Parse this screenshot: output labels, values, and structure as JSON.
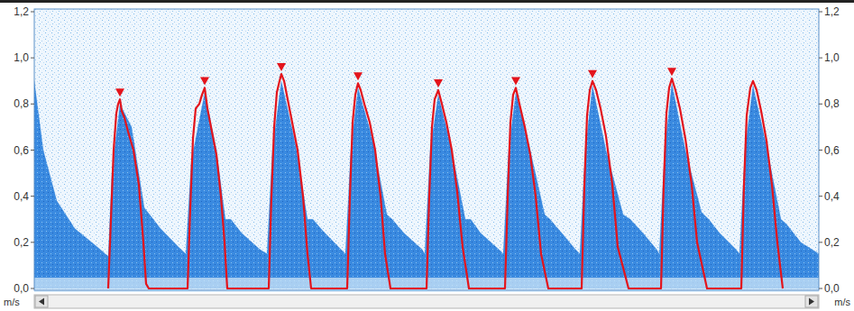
{
  "chart_data": {
    "type": "line",
    "y_label": "m/s",
    "y2_label": "m/s",
    "xlim": [
      0,
      870
    ],
    "ylim": [
      0,
      1.2
    ],
    "yticks": [
      {
        "value": 0,
        "label": "0,0"
      },
      {
        "value": 0.2,
        "label": "0,2"
      },
      {
        "value": 0.4,
        "label": "0,4"
      },
      {
        "value": 0.6,
        "label": "0,6"
      },
      {
        "value": 0.8,
        "label": "0,8"
      },
      {
        "value": 1.0,
        "label": "1,0"
      },
      {
        "value": 1.2,
        "label": "1,2"
      }
    ],
    "y2lim": [
      0,
      1.2
    ],
    "y2ticks": [
      {
        "value": 0,
        "label": "0,0"
      },
      {
        "value": 0.2,
        "label": "0,2"
      },
      {
        "value": 0.4,
        "label": "0,4"
      },
      {
        "value": 0.6,
        "label": "0,6"
      },
      {
        "value": 0.8,
        "label": "0,8"
      },
      {
        "value": 1.0,
        "label": "1,0"
      },
      {
        "value": 1.2,
        "label": "1,2"
      }
    ],
    "grid": false,
    "tick_labels": "y",
    "series": [
      {
        "type": "area",
        "color": "#3a8ae0",
        "x": [
          0,
          10,
          25,
          45,
          70,
          82,
          86,
          95,
          108,
          122,
          128,
          140,
          160,
          168,
          174,
          189,
          202,
          212,
          218,
          230,
          250,
          258,
          264,
          274,
          290,
          303,
          309,
          320,
          340,
          345,
          351,
          359,
          375,
          391,
          397,
          410,
          430,
          433,
          439,
          448,
          463,
          478,
          484,
          495,
          515,
          520,
          526,
          534,
          550,
          566,
          572,
          585,
          600,
          605,
          611,
          619,
          634,
          653,
          661,
          675,
          690,
          693,
          699,
          707,
          722,
          740,
          748,
          760,
          778,
          782,
          788,
          797,
          812,
          828,
          834,
          850,
          870
        ],
        "values": [
          0.9,
          0.6,
          0.38,
          0.26,
          0.18,
          0.14,
          0.5,
          0.8,
          0.7,
          0.35,
          0.32,
          0.26,
          0.18,
          0.15,
          0.55,
          0.85,
          0.6,
          0.3,
          0.3,
          0.24,
          0.17,
          0.15,
          0.6,
          0.9,
          0.62,
          0.3,
          0.3,
          0.25,
          0.17,
          0.15,
          0.6,
          0.87,
          0.65,
          0.32,
          0.3,
          0.24,
          0.17,
          0.15,
          0.6,
          0.84,
          0.6,
          0.3,
          0.3,
          0.24,
          0.17,
          0.15,
          0.6,
          0.85,
          0.6,
          0.32,
          0.3,
          0.24,
          0.17,
          0.15,
          0.6,
          0.88,
          0.6,
          0.32,
          0.3,
          0.24,
          0.17,
          0.15,
          0.6,
          0.89,
          0.6,
          0.33,
          0.3,
          0.24,
          0.17,
          0.15,
          0.6,
          0.88,
          0.62,
          0.3,
          0.28,
          0.2,
          0.15
        ]
      },
      {
        "type": "line",
        "color": "#e3141c",
        "line_style": "solid",
        "x": [
          82,
          85,
          88,
          91,
          93,
          95,
          97,
          100,
          104,
          110,
          116,
          121,
          124,
          127,
          170,
          173,
          176,
          179,
          183,
          186,
          189,
          192,
          196,
          202,
          207,
          211,
          214,
          260,
          263,
          266,
          269,
          272,
          274,
          277,
          281,
          286,
          292,
          298,
          303,
          307,
          347,
          350,
          353,
          356,
          359,
          362,
          366,
          372,
          378,
          384,
          389,
          395,
          435,
          438,
          441,
          444,
          448,
          452,
          457,
          463,
          469,
          475,
          482,
          522,
          525,
          528,
          531,
          534,
          538,
          544,
          550,
          556,
          562,
          570,
          607,
          610,
          613,
          616,
          619,
          623,
          628,
          634,
          641,
          647,
          659,
          695,
          698,
          701,
          704,
          707,
          711,
          716,
          722,
          729,
          735,
          746,
          784,
          787,
          790,
          794,
          797,
          801,
          806,
          812,
          818,
          824,
          830
        ],
        "values": [
          0,
          0.3,
          0.6,
          0.76,
          0.8,
          0.82,
          0.77,
          0.74,
          0.68,
          0.6,
          0.45,
          0.2,
          0.02,
          0,
          0,
          0.35,
          0.65,
          0.78,
          0.8,
          0.84,
          0.87,
          0.78,
          0.7,
          0.58,
          0.4,
          0.2,
          0,
          0,
          0.4,
          0.7,
          0.85,
          0.9,
          0.93,
          0.9,
          0.82,
          0.72,
          0.6,
          0.4,
          0.15,
          0,
          0,
          0.4,
          0.72,
          0.84,
          0.89,
          0.86,
          0.8,
          0.72,
          0.6,
          0.4,
          0.15,
          0,
          0,
          0.4,
          0.7,
          0.82,
          0.86,
          0.8,
          0.72,
          0.6,
          0.42,
          0.18,
          0,
          0,
          0.4,
          0.72,
          0.84,
          0.87,
          0.8,
          0.7,
          0.58,
          0.4,
          0.15,
          0,
          0,
          0.45,
          0.75,
          0.86,
          0.9,
          0.86,
          0.78,
          0.66,
          0.45,
          0.18,
          0,
          0,
          0.45,
          0.76,
          0.87,
          0.91,
          0.86,
          0.78,
          0.65,
          0.45,
          0.2,
          0,
          0,
          0.45,
          0.75,
          0.87,
          0.9,
          0.86,
          0.77,
          0.64,
          0.45,
          0.2,
          0
        ]
      },
      {
        "type": "scatter",
        "color": "#e3141c",
        "marker": "triangle-down",
        "x": [
          95,
          189,
          274,
          359,
          448,
          534,
          619,
          707
        ],
        "values": [
          0.82,
          0.87,
          0.93,
          0.89,
          0.86,
          0.87,
          0.9,
          0.91
        ]
      }
    ]
  }
}
